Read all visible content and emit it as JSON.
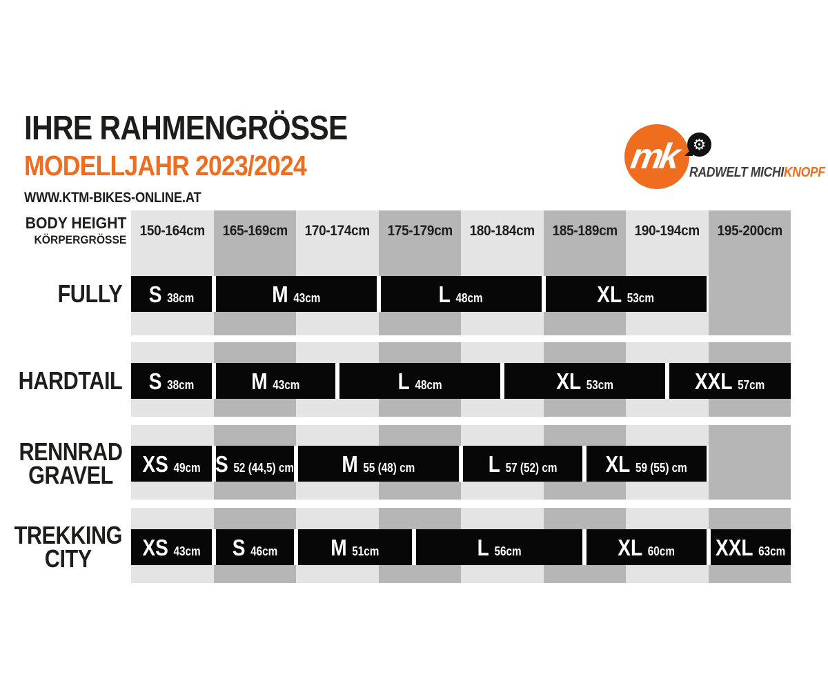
{
  "page": {
    "title": "IHRE RAHMENGRÖSSE",
    "subtitle": "MODELLJAHR 2023/2024",
    "website": "WWW.KTM-BIKES-ONLINE.AT"
  },
  "logo": {
    "monogram": "mk",
    "gear_icon": "⚙",
    "brand_name_dark": "RADWELT MICHI",
    "brand_name_accent": "KNOPF"
  },
  "colors": {
    "accent_orange": "#ee6d1f",
    "stripe_light": "#e4e4e4",
    "stripe_dark": "#b6b6b6",
    "bar_black": "#070707",
    "text_black": "#1d1d1b",
    "brand_gray": "#3d3d3b"
  },
  "chart_data": {
    "type": "table",
    "title": "IHRE RAHMENGRÖSSE",
    "subtitle": "MODELLJAHR 2023/2024",
    "column_header_primary": "BODY HEIGHT",
    "column_header_secondary": "KÖRPERGRÖSSE",
    "columns": [
      "150-164cm",
      "165-169cm",
      "170-174cm",
      "175-179cm",
      "180-184cm",
      "185-189cm",
      "190-194cm",
      "195-200cm"
    ],
    "rows": [
      {
        "label_lines": [
          "FULLY"
        ],
        "bars": [
          {
            "size": "S",
            "value": "38cm",
            "start": 0,
            "end": 1
          },
          {
            "size": "M",
            "value": "43cm",
            "start": 1,
            "end": 3
          },
          {
            "size": "L",
            "value": "48cm",
            "start": 3,
            "end": 5
          },
          {
            "size": "XL",
            "value": "53cm",
            "start": 5,
            "end": 7
          }
        ]
      },
      {
        "label_lines": [
          "HARDTAIL"
        ],
        "bars": [
          {
            "size": "S",
            "value": "38cm",
            "start": 0,
            "end": 1
          },
          {
            "size": "M",
            "value": "43cm",
            "start": 1,
            "end": 2.5
          },
          {
            "size": "L",
            "value": "48cm",
            "start": 2.5,
            "end": 4.5
          },
          {
            "size": "XL",
            "value": "53cm",
            "start": 4.5,
            "end": 6.5
          },
          {
            "size": "XXL",
            "value": "57cm",
            "start": 6.5,
            "end": 8
          }
        ]
      },
      {
        "label_lines": [
          "RENNRAD",
          "GRAVEL"
        ],
        "bars": [
          {
            "size": "XS",
            "value": "49cm",
            "start": 0,
            "end": 1
          },
          {
            "size": "S",
            "value": "52 (44,5) cm",
            "start": 1,
            "end": 2
          },
          {
            "size": "M",
            "value": "55 (48) cm",
            "start": 2,
            "end": 4
          },
          {
            "size": "L",
            "value": "57 (52) cm",
            "start": 4,
            "end": 5.5
          },
          {
            "size": "XL",
            "value": "59 (55) cm",
            "start": 5.5,
            "end": 7
          }
        ]
      },
      {
        "label_lines": [
          "TREKKING",
          "CITY"
        ],
        "bars": [
          {
            "size": "XS",
            "value": "43cm",
            "start": 0,
            "end": 1
          },
          {
            "size": "S",
            "value": "46cm",
            "start": 1,
            "end": 2
          },
          {
            "size": "M",
            "value": "51cm",
            "start": 2,
            "end": 3.43
          },
          {
            "size": "L",
            "value": "56cm",
            "start": 3.43,
            "end": 5.5
          },
          {
            "size": "XL",
            "value": "60cm",
            "start": 5.5,
            "end": 7
          },
          {
            "size": "XXL",
            "value": "63cm",
            "start": 7,
            "end": 8
          }
        ]
      }
    ]
  }
}
